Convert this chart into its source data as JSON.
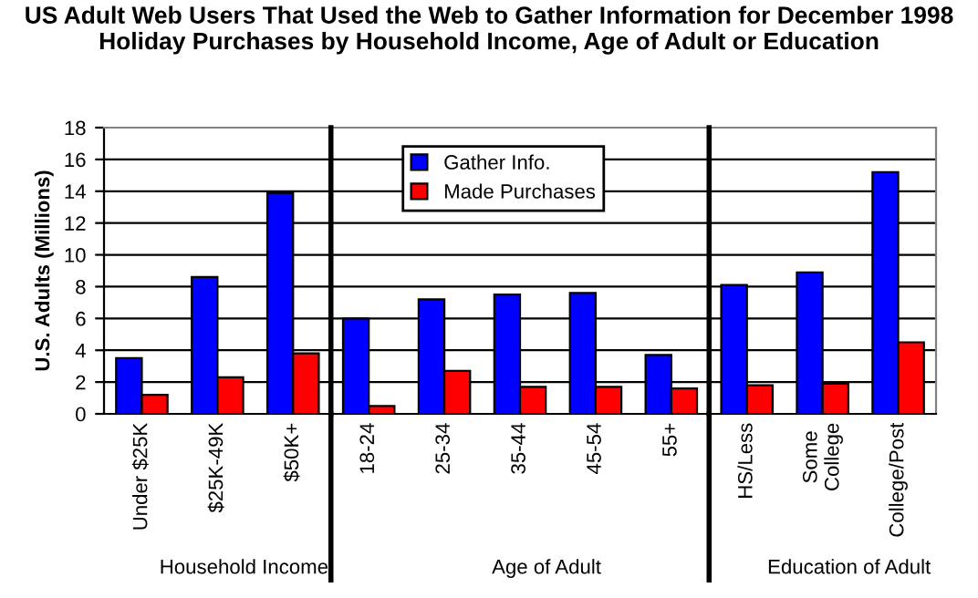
{
  "chart_data": {
    "type": "bar",
    "title": "US Adult Web Users That Used the Web to Gather Information for December 1998 Holiday Purchases by Household Income, Age of Adult or Education",
    "ylabel": "U.S. Adults (Millions)",
    "categories": [
      "Under $25K",
      "$25K-49K",
      "$50K+",
      "18-24",
      "25-34",
      "35-44",
      "45-54",
      "55+",
      "HS/Less",
      "Some\nCollege",
      "College/Post"
    ],
    "series": [
      {
        "name": "Gather Info.",
        "color": "#0000ff",
        "values": [
          3.5,
          8.6,
          13.9,
          6.0,
          7.2,
          7.5,
          7.6,
          3.7,
          8.1,
          8.9,
          15.2
        ]
      },
      {
        "name": "Made Purchases",
        "color": "#ff0000",
        "values": [
          1.2,
          2.3,
          3.8,
          0.5,
          2.7,
          1.7,
          1.7,
          1.6,
          1.8,
          1.9,
          4.5
        ]
      }
    ],
    "ylim": [
      0,
      18
    ],
    "yticks": [
      0,
      2,
      4,
      6,
      8,
      10,
      12,
      14,
      16,
      18
    ],
    "grid": "y",
    "legend": "top",
    "annotations": [
      "Household Income",
      "Age of Adult",
      "Education of Adult"
    ]
  }
}
